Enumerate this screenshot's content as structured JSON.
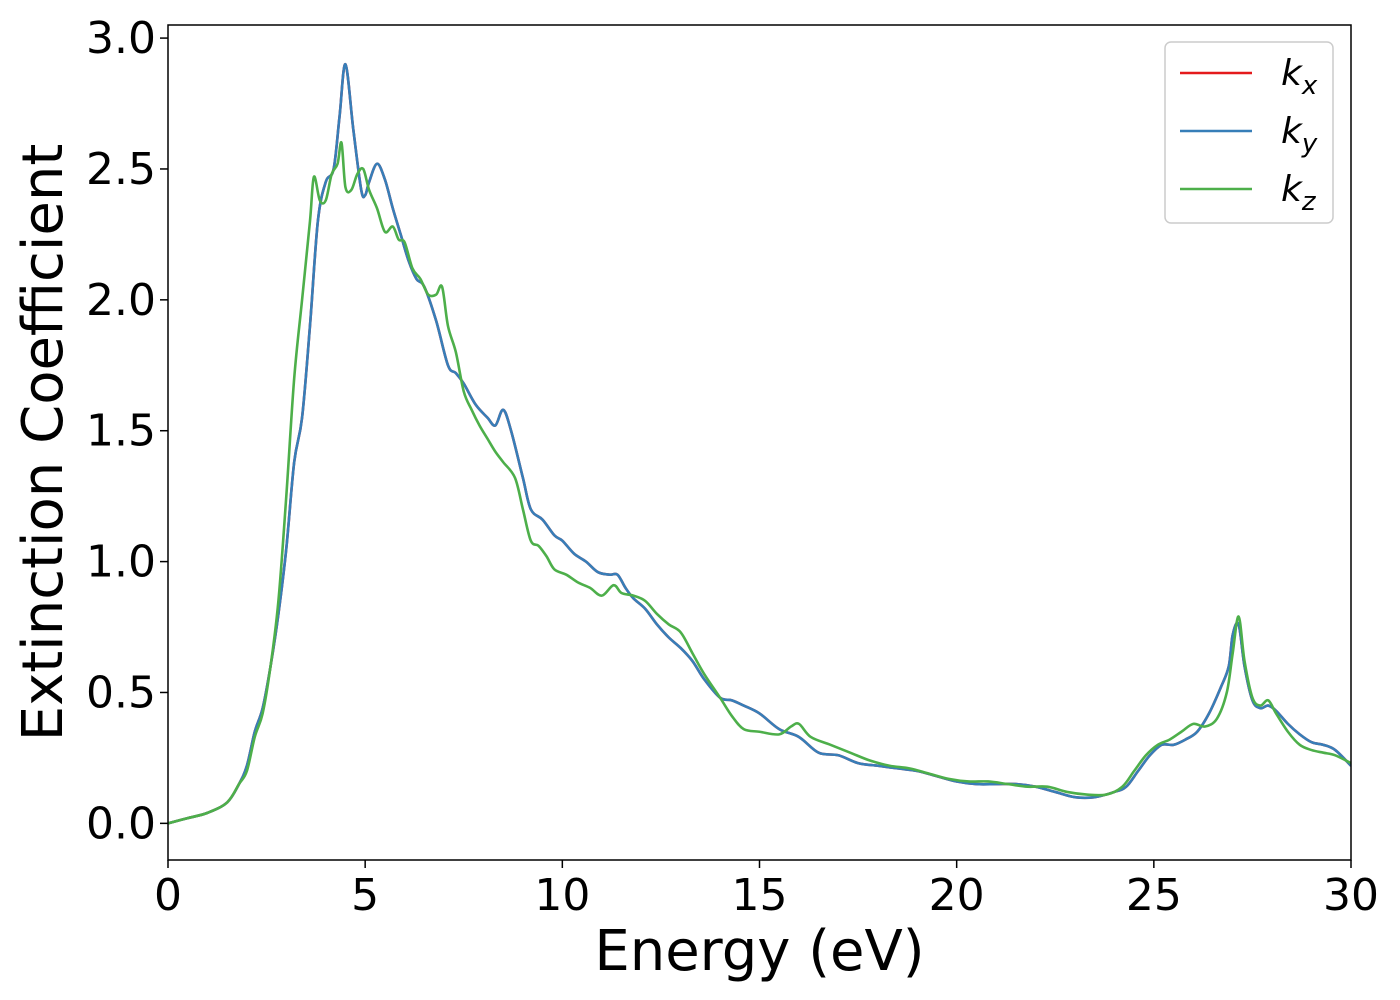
{
  "chart_data": {
    "type": "line",
    "xlabel": "Energy (eV)",
    "ylabel": "Extinction Coefficient",
    "xlim": [
      0,
      30
    ],
    "ylim": [
      -0.14,
      3.05
    ],
    "xticks": [
      0,
      5,
      10,
      15,
      20,
      25,
      30
    ],
    "xtick_labels": [
      "0",
      "5",
      "10",
      "15",
      "20",
      "25",
      "30"
    ],
    "yticks": [
      0.0,
      0.5,
      1.0,
      1.5,
      2.0,
      2.5,
      3.0
    ],
    "ytick_labels": [
      "0.0",
      "0.5",
      "1.0",
      "1.5",
      "2.0",
      "2.5",
      "3.0"
    ],
    "grid": false,
    "legend_position": "top-right",
    "series": [
      {
        "name": "k_x",
        "label_base": "k",
        "label_sub": "x",
        "color": "#e41a1c",
        "x": [
          0,
          0.5,
          1,
          1.5,
          1.8,
          2,
          2.2,
          2.4,
          2.6,
          2.8,
          3,
          3.2,
          3.4,
          3.6,
          3.8,
          4,
          4.2,
          4.35,
          4.5,
          4.7,
          4.9,
          5,
          5.1,
          5.3,
          5.5,
          5.7,
          5.9,
          6.1,
          6.3,
          6.5,
          6.8,
          7.1,
          7.3,
          7.5,
          7.8,
          8.1,
          8.3,
          8.5,
          8.7,
          9,
          9.2,
          9.5,
          9.8,
          10,
          10.3,
          10.6,
          10.9,
          11.2,
          11.4,
          11.6,
          11.8,
          12.1,
          12.4,
          12.7,
          13,
          13.3,
          13.6,
          14,
          14.3,
          14.6,
          15,
          15.5,
          16,
          16.5,
          17,
          17.5,
          18,
          18.5,
          19,
          19.5,
          20,
          20.5,
          21,
          21.5,
          22,
          22.5,
          23,
          23.5,
          24,
          24.3,
          24.6,
          24.9,
          25.2,
          25.5,
          25.8,
          26.1,
          26.4,
          26.7,
          26.9,
          27,
          27.15,
          27.3,
          27.5,
          27.7,
          27.9,
          28.1,
          28.4,
          28.7,
          29,
          29.3,
          29.6,
          30
        ],
        "y": [
          0,
          0.02,
          0.04,
          0.08,
          0.15,
          0.22,
          0.35,
          0.44,
          0.6,
          0.8,
          1.05,
          1.38,
          1.55,
          1.9,
          2.3,
          2.45,
          2.5,
          2.7,
          2.9,
          2.65,
          2.42,
          2.4,
          2.45,
          2.52,
          2.46,
          2.35,
          2.25,
          2.15,
          2.08,
          2.05,
          1.92,
          1.75,
          1.72,
          1.68,
          1.6,
          1.55,
          1.52,
          1.58,
          1.5,
          1.32,
          1.2,
          1.16,
          1.1,
          1.08,
          1.03,
          1.0,
          0.96,
          0.95,
          0.95,
          0.9,
          0.86,
          0.82,
          0.76,
          0.71,
          0.67,
          0.62,
          0.55,
          0.48,
          0.47,
          0.45,
          0.42,
          0.36,
          0.33,
          0.27,
          0.26,
          0.23,
          0.22,
          0.21,
          0.2,
          0.18,
          0.16,
          0.15,
          0.15,
          0.15,
          0.14,
          0.12,
          0.1,
          0.1,
          0.12,
          0.14,
          0.2,
          0.26,
          0.3,
          0.3,
          0.32,
          0.35,
          0.42,
          0.52,
          0.6,
          0.72,
          0.76,
          0.6,
          0.47,
          0.44,
          0.45,
          0.43,
          0.38,
          0.34,
          0.31,
          0.3,
          0.28,
          0.22
        ]
      },
      {
        "name": "k_y",
        "label_base": "k",
        "label_sub": "y",
        "color": "#377eb8",
        "x": [
          0,
          0.5,
          1,
          1.5,
          1.8,
          2,
          2.2,
          2.4,
          2.6,
          2.8,
          3,
          3.2,
          3.4,
          3.6,
          3.8,
          4,
          4.2,
          4.35,
          4.5,
          4.7,
          4.9,
          5,
          5.1,
          5.3,
          5.5,
          5.7,
          5.9,
          6.1,
          6.3,
          6.5,
          6.8,
          7.1,
          7.3,
          7.5,
          7.8,
          8.1,
          8.3,
          8.5,
          8.7,
          9,
          9.2,
          9.5,
          9.8,
          10,
          10.3,
          10.6,
          10.9,
          11.2,
          11.4,
          11.6,
          11.8,
          12.1,
          12.4,
          12.7,
          13,
          13.3,
          13.6,
          14,
          14.3,
          14.6,
          15,
          15.5,
          16,
          16.5,
          17,
          17.5,
          18,
          18.5,
          19,
          19.5,
          20,
          20.5,
          21,
          21.5,
          22,
          22.5,
          23,
          23.5,
          24,
          24.3,
          24.6,
          24.9,
          25.2,
          25.5,
          25.8,
          26.1,
          26.4,
          26.7,
          26.9,
          27,
          27.15,
          27.3,
          27.5,
          27.7,
          27.9,
          28.1,
          28.4,
          28.7,
          29,
          29.3,
          29.6,
          30
        ],
        "y": [
          0,
          0.02,
          0.04,
          0.08,
          0.15,
          0.22,
          0.35,
          0.44,
          0.6,
          0.8,
          1.05,
          1.38,
          1.55,
          1.9,
          2.3,
          2.45,
          2.5,
          2.7,
          2.9,
          2.65,
          2.42,
          2.4,
          2.45,
          2.52,
          2.46,
          2.35,
          2.25,
          2.15,
          2.08,
          2.05,
          1.92,
          1.75,
          1.72,
          1.68,
          1.6,
          1.55,
          1.52,
          1.58,
          1.5,
          1.32,
          1.2,
          1.16,
          1.1,
          1.08,
          1.03,
          1.0,
          0.96,
          0.95,
          0.95,
          0.9,
          0.86,
          0.82,
          0.76,
          0.71,
          0.67,
          0.62,
          0.55,
          0.48,
          0.47,
          0.45,
          0.42,
          0.36,
          0.33,
          0.27,
          0.26,
          0.23,
          0.22,
          0.21,
          0.2,
          0.18,
          0.16,
          0.15,
          0.15,
          0.15,
          0.14,
          0.12,
          0.1,
          0.1,
          0.12,
          0.14,
          0.2,
          0.26,
          0.3,
          0.3,
          0.32,
          0.35,
          0.42,
          0.52,
          0.6,
          0.72,
          0.76,
          0.6,
          0.47,
          0.44,
          0.45,
          0.43,
          0.38,
          0.34,
          0.31,
          0.3,
          0.28,
          0.22
        ]
      },
      {
        "name": "k_z",
        "label_base": "k",
        "label_sub": "z",
        "color": "#4daf4a",
        "x": [
          0,
          0.5,
          1,
          1.5,
          1.8,
          2,
          2.2,
          2.4,
          2.6,
          2.8,
          3,
          3.2,
          3.4,
          3.6,
          3.7,
          3.85,
          4,
          4.15,
          4.3,
          4.4,
          4.5,
          4.65,
          4.8,
          4.95,
          5.1,
          5.3,
          5.5,
          5.7,
          5.85,
          6,
          6.2,
          6.4,
          6.6,
          6.8,
          6.95,
          7.1,
          7.3,
          7.5,
          7.7,
          7.9,
          8.1,
          8.3,
          8.5,
          8.8,
          9,
          9.2,
          9.4,
          9.6,
          9.8,
          10.1,
          10.4,
          10.7,
          11,
          11.3,
          11.5,
          11.8,
          12.1,
          12.4,
          12.7,
          13,
          13.3,
          13.6,
          14,
          14.3,
          14.6,
          15,
          15.5,
          15.8,
          16,
          16.3,
          16.8,
          17.3,
          17.8,
          18.3,
          18.8,
          19.3,
          19.8,
          20.3,
          20.8,
          21.3,
          21.8,
          22.3,
          22.8,
          23.3,
          23.8,
          24.2,
          24.5,
          24.8,
          25.1,
          25.4,
          25.7,
          26,
          26.3,
          26.6,
          26.85,
          27,
          27.15,
          27.3,
          27.5,
          27.7,
          27.9,
          28.1,
          28.4,
          28.7,
          29,
          29.3,
          29.6,
          30
        ],
        "y": [
          0,
          0.02,
          0.04,
          0.08,
          0.15,
          0.2,
          0.33,
          0.42,
          0.6,
          0.85,
          1.25,
          1.7,
          2.0,
          2.3,
          2.47,
          2.38,
          2.38,
          2.48,
          2.52,
          2.6,
          2.43,
          2.42,
          2.48,
          2.5,
          2.42,
          2.35,
          2.26,
          2.28,
          2.23,
          2.22,
          2.12,
          2.08,
          2.02,
          2.02,
          2.05,
          1.9,
          1.8,
          1.65,
          1.58,
          1.52,
          1.47,
          1.42,
          1.38,
          1.32,
          1.2,
          1.08,
          1.06,
          1.02,
          0.97,
          0.95,
          0.92,
          0.9,
          0.87,
          0.91,
          0.88,
          0.87,
          0.85,
          0.8,
          0.76,
          0.73,
          0.65,
          0.57,
          0.48,
          0.41,
          0.36,
          0.35,
          0.34,
          0.37,
          0.38,
          0.33,
          0.3,
          0.27,
          0.24,
          0.22,
          0.21,
          0.19,
          0.17,
          0.16,
          0.16,
          0.15,
          0.14,
          0.14,
          0.12,
          0.11,
          0.11,
          0.14,
          0.2,
          0.26,
          0.3,
          0.32,
          0.35,
          0.38,
          0.37,
          0.4,
          0.5,
          0.65,
          0.79,
          0.62,
          0.48,
          0.45,
          0.47,
          0.42,
          0.35,
          0.3,
          0.28,
          0.27,
          0.26,
          0.23
        ]
      }
    ]
  }
}
